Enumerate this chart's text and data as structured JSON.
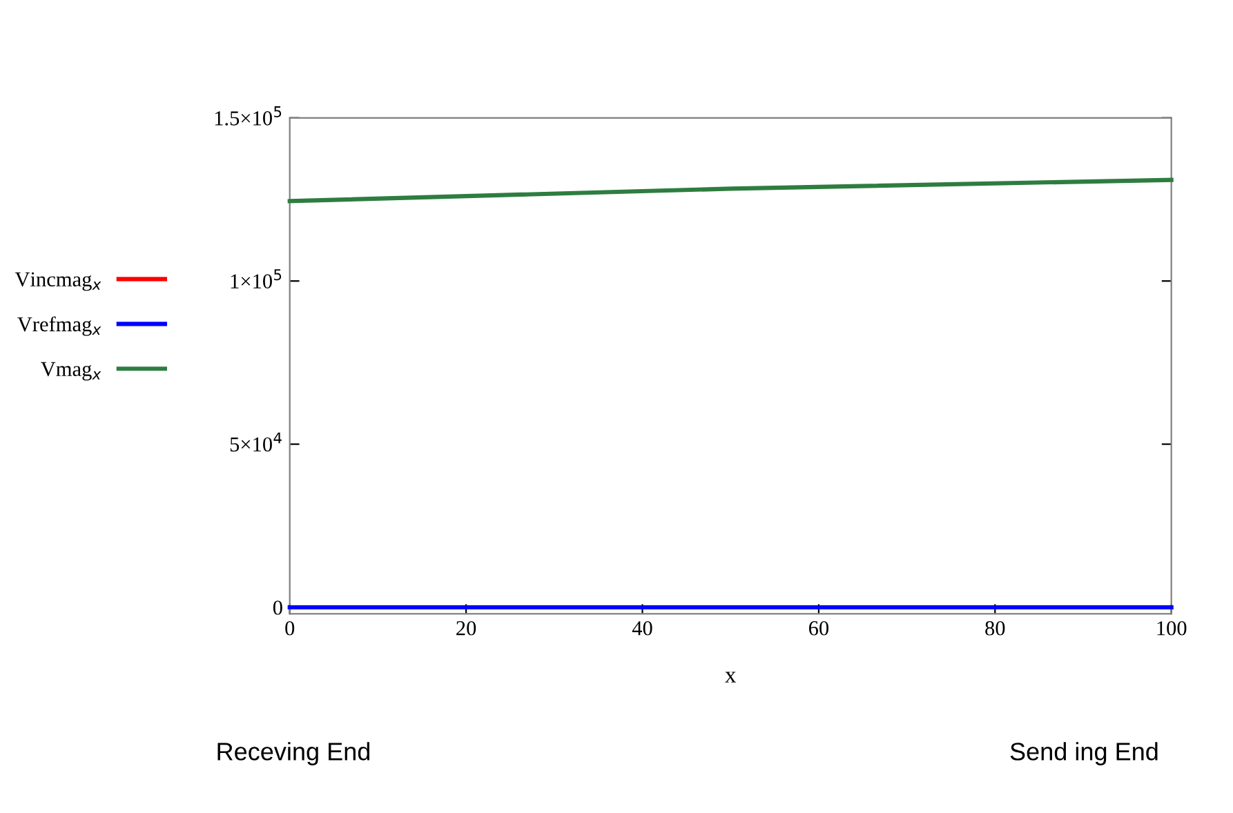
{
  "chart_data": {
    "type": "line",
    "xlabel": "x",
    "x": [
      0,
      50,
      100
    ],
    "series": [
      {
        "name": "Vincmag$_{x}$",
        "color": "#ff0000",
        "values": [
          null,
          null,
          null
        ]
      },
      {
        "name": "Vrefmag$_{x}$",
        "color": "#0000ff",
        "values": [
          0,
          0,
          0
        ]
      },
      {
        "name": "Vmag$_{x}$",
        "color": "#2e7d40",
        "values": [
          124500,
          128300,
          131000
        ]
      }
    ],
    "xlim": [
      0,
      100
    ],
    "xticks": [
      0,
      20,
      40,
      60,
      80,
      100
    ],
    "ylim": [
      -2000,
      150000
    ],
    "yticks": [
      0,
      {
        "value": 50000,
        "label": "5×10$^{4}$"
      },
      {
        "value": 100000,
        "label": "1×10$^{5}$"
      },
      {
        "value": 150000,
        "label": "1.5×10$^{5}$"
      }
    ],
    "legend": "left",
    "grid": false,
    "annotations": [
      "Receving End",
      "Send ing End"
    ]
  }
}
